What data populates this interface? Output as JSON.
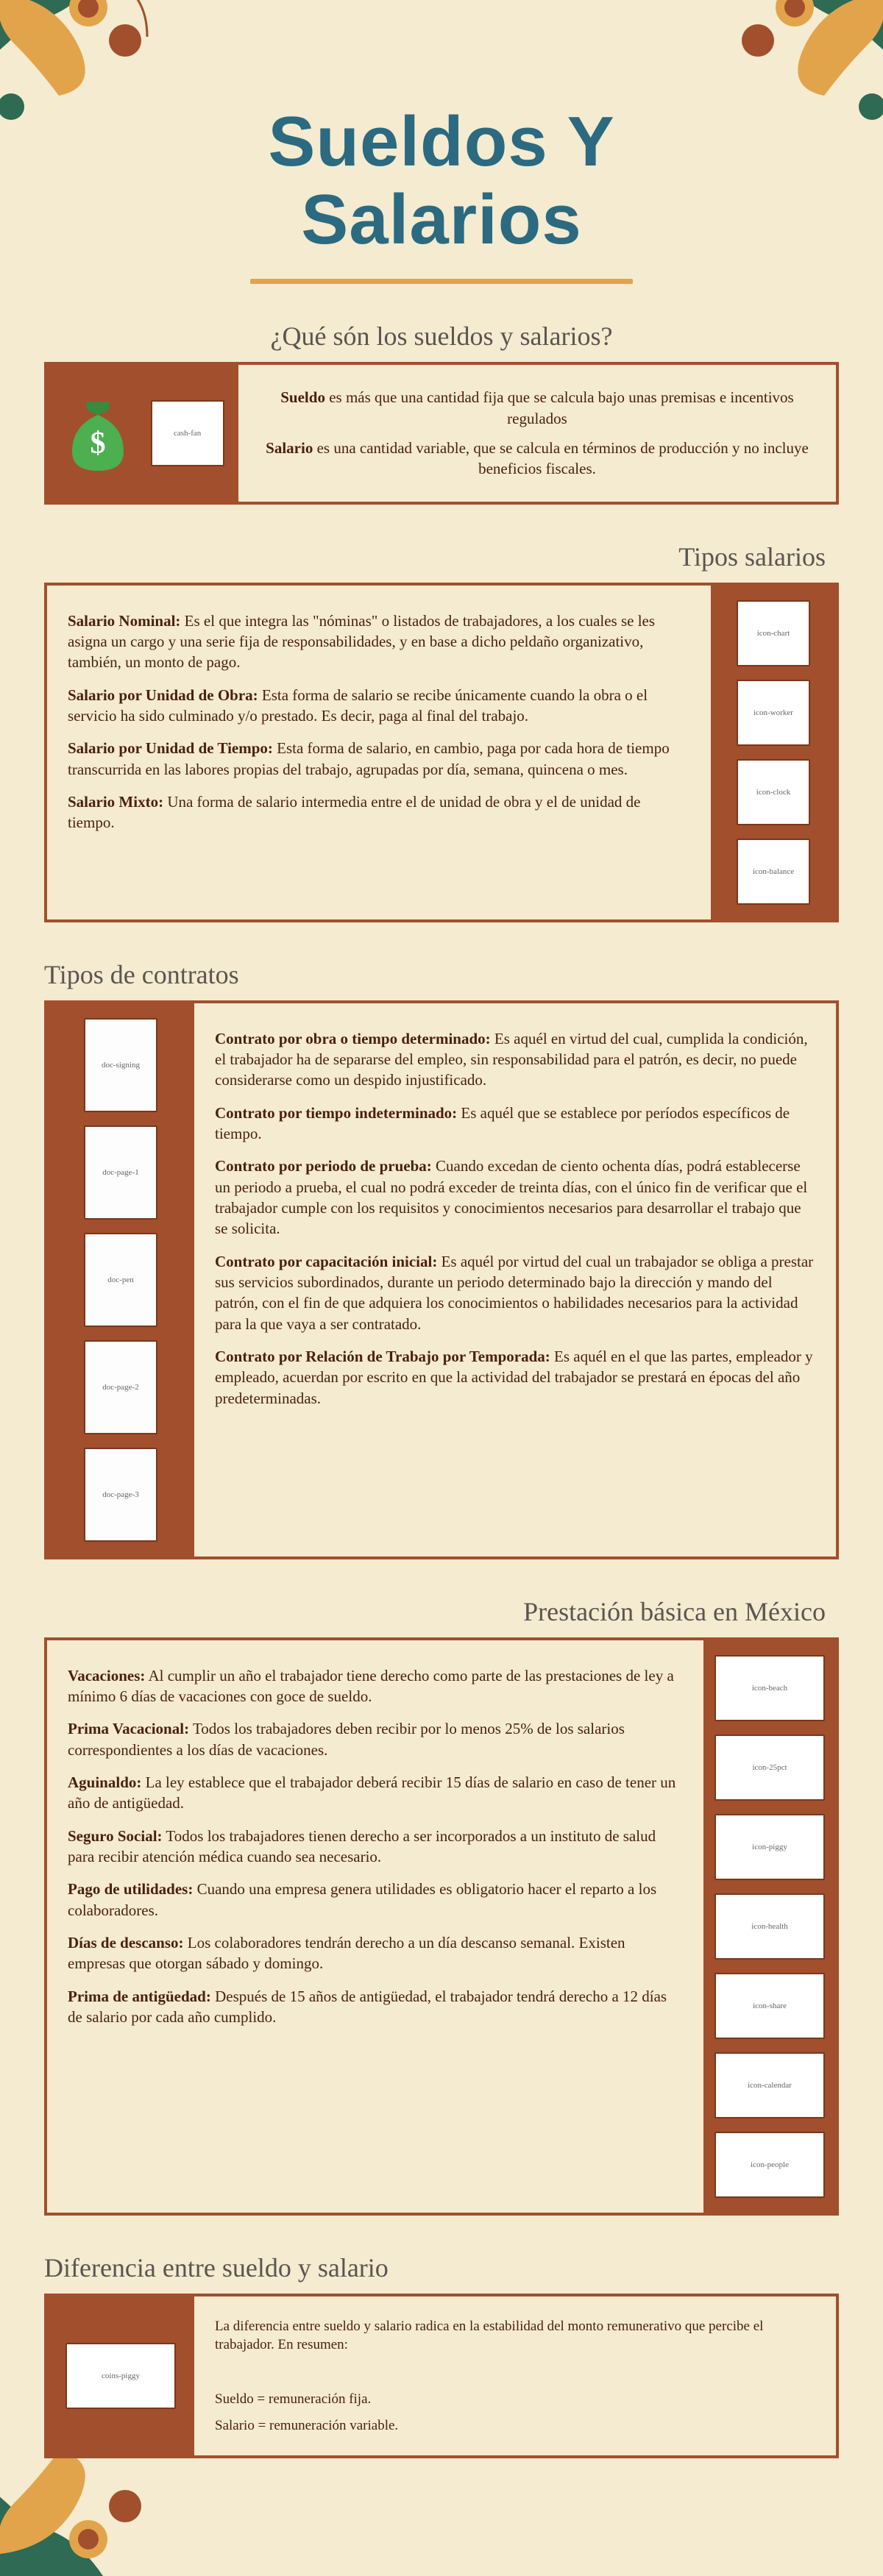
{
  "colors": {
    "background": "#f4ebd0",
    "title": "#2b6a80",
    "rule": "#e2a44b",
    "border": "#a24f2d",
    "panel": "#a24f2d",
    "text": "#4a1f0e",
    "heading": "#5a5550",
    "deco_green": "#2e6a54",
    "deco_orange": "#e2a44b"
  },
  "title": {
    "line1": "Sueldos Y",
    "line2": "Salarios"
  },
  "section1": {
    "heading": "¿Qué són los sueldos y salarios?",
    "sueldo_html": "Sueldo es más que una cantidad fija que se calcula bajo unas premisas e incentivos regulados",
    "sueldo_label": "Sueldo",
    "sueldo_text": " es más que una cantidad fija que se calcula bajo unas premisas e incentivos regulados",
    "salario_label": "Salario",
    "salario_text": " es una cantidad variable, que se calcula en términos de producción y no incluye beneficios fiscales.",
    "icon1": "money-bag",
    "icon2": "cash-fan"
  },
  "section2": {
    "heading": "Tipos salarios",
    "items": [
      {
        "label": "Salario Nominal:",
        "text": " Es el que integra las \"nóminas\" o listados de trabajadores, a los cuales se les asigna un cargo y una serie fija de responsabilidades, y en base a dicho peldaño organizativo, también, un monto de pago.",
        "thumb": "icon-chart"
      },
      {
        "label": "Salario por Unidad de Obra:",
        "text": " Esta forma de salario se recibe únicamente cuando la obra o el servicio ha sido culminado y/o prestado. Es decir, paga al final del trabajo.",
        "thumb": "icon-worker"
      },
      {
        "label": "Salario por Unidad de Tiempo:",
        "text": " Esta forma de salario, en cambio, paga por cada hora de tiempo transcurrida en las labores propias del trabajo, agrupadas por día, semana, quincena o mes.",
        "thumb": "icon-clock"
      },
      {
        "label": "Salario Mixto:",
        "text": " Una forma de salario intermedia entre el de unidad de obra y el de unidad de tiempo.",
        "thumb": "icon-balance"
      }
    ]
  },
  "section3": {
    "heading": "Tipos de contratos",
    "items": [
      {
        "label": "Contrato por obra o tiempo determinado:",
        "text": " Es aquél en virtud del cual, cumplida la condición, el trabajador ha de separarse del empleo, sin responsabilidad para el patrón, es decir, no puede considerarse como un despido injustificado.",
        "thumb": "doc-signing"
      },
      {
        "label": "Contrato por tiempo indeterminado:",
        "text": " Es aquél que se establece por períodos específicos de tiempo.",
        "thumb": "doc-page-1"
      },
      {
        "label": "Contrato por periodo de prueba:",
        "text": " Cuando excedan de ciento ochenta días, podrá establecerse un periodo a prueba, el cual no podrá exceder de treinta días, con el único fin de verificar que el trabajador cumple con los requisitos y conocimientos necesarios para desarrollar el trabajo que se solicita.",
        "thumb": "doc-pen"
      },
      {
        "label": "Contrato por capacitación inicial:",
        "text": " Es aquél por virtud del cual un trabajador se obliga a prestar sus servicios subordinados, durante un periodo determinado bajo la dirección y mando del patrón, con el fin de que adquiera los conocimientos o habilidades necesarios para la actividad para la que vaya a ser contratado.",
        "thumb": "doc-page-2"
      },
      {
        "label": "Contrato por Relación de Trabajo por Temporada:",
        "text": " Es aquél en el que las partes, empleador y empleado, acuerdan por escrito en que la actividad del trabajador se prestará en épocas del año predeterminadas.",
        "thumb": "doc-page-3"
      }
    ]
  },
  "section4": {
    "heading": "Prestación básica en México",
    "items": [
      {
        "label": "Vacaciones:",
        "text": " Al cumplir un año el trabajador tiene derecho como parte de las prestaciones de ley a mínimo 6 días de vacaciones con goce de sueldo.",
        "thumb": "icon-beach"
      },
      {
        "label": "Prima  Vacacional:",
        "text": " Todos los trabajadores deben recibir por lo menos 25% de los salarios correspondientes a los días de vacaciones.",
        "thumb": "icon-25pct"
      },
      {
        "label": "Aguinaldo:",
        "text": " La ley establece que el trabajador deberá recibir 15 días de salario en caso de tener un año de antigüedad.",
        "thumb": "icon-piggy"
      },
      {
        "label": "Seguro Social:",
        "text": " Todos los trabajadores tienen derecho a ser incorporados a un instituto de salud para recibir atención médica cuando sea necesario.",
        "thumb": "icon-health"
      },
      {
        "label": "Pago de utilidades:",
        "text": " Cuando una empresa genera utilidades es obligatorio hacer el reparto a los colaboradores.",
        "thumb": "icon-share"
      },
      {
        "label": "Días de descanso:",
        "text": " Los colaboradores tendrán derecho a un día descanso semanal. Existen empresas que otorgan sábado y domingo.",
        "thumb": "icon-calendar"
      },
      {
        "label": "Prima de antigüedad:",
        "text": " Después de 15 años de antigüedad, el trabajador tendrá derecho a 12 días de salario por cada año cumplido.",
        "thumb": "icon-people"
      }
    ]
  },
  "section5": {
    "heading": "Diferencia entre sueldo y salario",
    "intro": "La diferencia entre sueldo y salario radica en la estabilidad del monto remunerativo que percibe el trabajador. En resumen:",
    "line1": "Sueldo = remuneración fija.",
    "line2": "Salario = remuneración variable.",
    "thumb": "coins-piggy"
  }
}
